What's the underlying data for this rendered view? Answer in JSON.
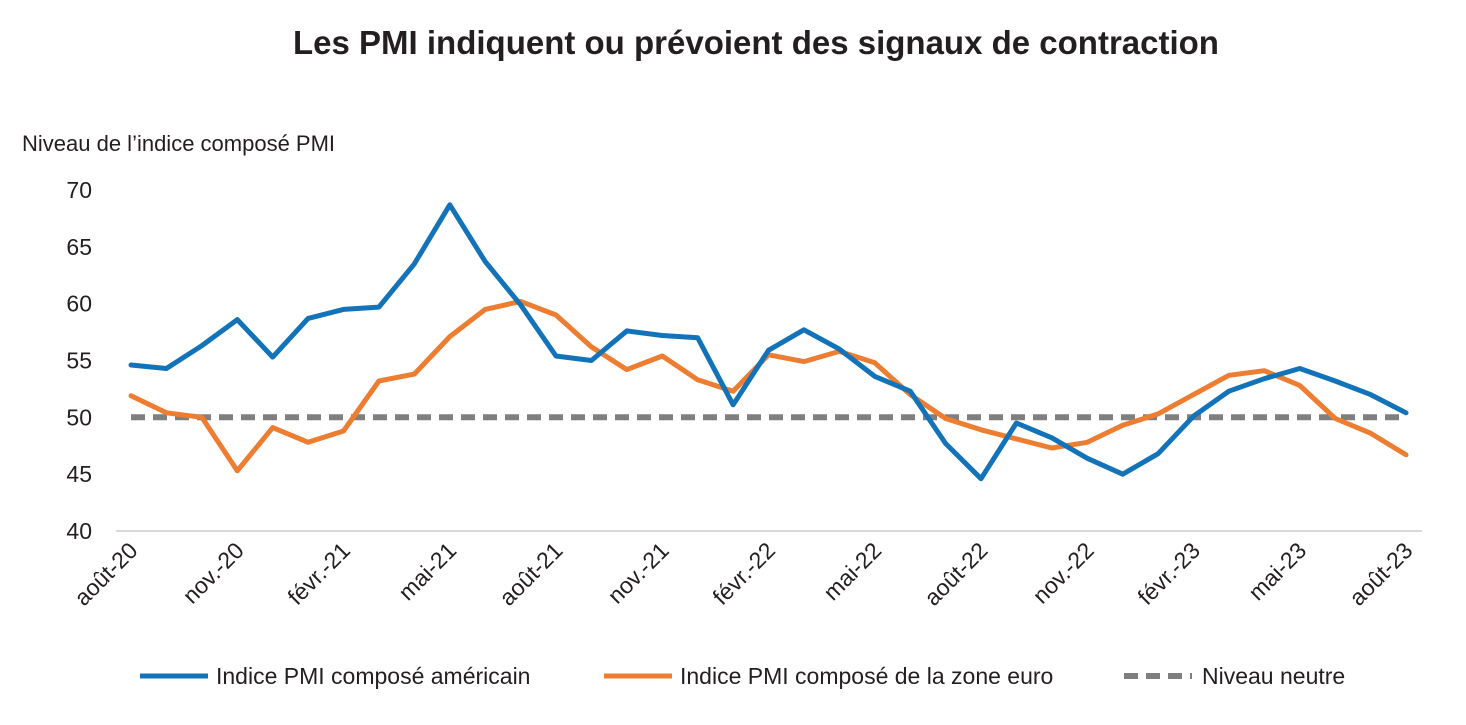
{
  "chart_data": {
    "type": "line",
    "title": "Les  PMI indiquent ou prévoient des signaux de contraction",
    "xlabel": "",
    "ylabel": "Niveau de l’indice composé PMI",
    "ylim": [
      40,
      70
    ],
    "yticks": [
      40,
      45,
      50,
      55,
      60,
      65,
      70
    ],
    "x": [
      "août-20",
      "sept.-20",
      "oct.-20",
      "nov.-20",
      "déc.-20",
      "janv.-21",
      "févr.-21",
      "mars-21",
      "avr.-21",
      "mai-21",
      "juin-21",
      "juil.-21",
      "août-21",
      "sept.-21",
      "oct.-21",
      "nov.-21",
      "déc.-21",
      "janv.-22",
      "févr.-22",
      "mars-22",
      "avr.-22",
      "mai-22",
      "juin-22",
      "juil.-22",
      "août-22",
      "sept.-22",
      "oct.-22",
      "nov.-22",
      "déc.-22",
      "janv.-23",
      "févr.-23",
      "mars-23",
      "avr.-23",
      "mai-23",
      "juin-23",
      "juil.-23",
      "août-23"
    ],
    "xtick_labels": [
      "août-20",
      "nov.-20",
      "févr.-21",
      "mai-21",
      "août-21",
      "nov.-21",
      "févr.-22",
      "mai-22",
      "août-22",
      "nov.-22",
      "févr.-23",
      "mai-23",
      "août-23"
    ],
    "grid": false,
    "legend_position": "bottom",
    "series": [
      {
        "name": "Indice PMI composé américain",
        "color": "#1273b8",
        "style": "solid",
        "values": [
          54.6,
          54.3,
          56.3,
          58.6,
          55.3,
          58.7,
          59.5,
          59.7,
          63.5,
          68.7,
          63.7,
          59.9,
          55.4,
          55.0,
          57.6,
          57.2,
          57.0,
          51.1,
          55.9,
          57.7,
          56.0,
          53.6,
          52.3,
          47.7,
          44.6,
          49.5,
          48.2,
          46.4,
          45.0,
          46.8,
          50.1,
          52.3,
          53.4,
          54.3,
          53.2,
          52.0,
          50.4
        ]
      },
      {
        "name": "Indice PMI composé de la zone euro",
        "color": "#ed7d31",
        "style": "solid",
        "values": [
          51.9,
          50.4,
          50.0,
          45.3,
          49.1,
          47.8,
          48.8,
          53.2,
          53.8,
          57.1,
          59.5,
          60.2,
          59.0,
          56.2,
          54.2,
          55.4,
          53.3,
          52.3,
          55.5,
          54.9,
          55.8,
          54.8,
          52.0,
          49.9,
          48.9,
          48.1,
          47.3,
          47.8,
          49.3,
          50.3,
          52.0,
          53.7,
          54.1,
          52.8,
          49.9,
          48.6,
          46.7
        ]
      },
      {
        "name": "Niveau neutre",
        "color": "#7f7f7f",
        "style": "dashed",
        "values": [
          50,
          50,
          50,
          50,
          50,
          50,
          50,
          50,
          50,
          50,
          50,
          50,
          50,
          50,
          50,
          50,
          50,
          50,
          50,
          50,
          50,
          50,
          50,
          50,
          50,
          50,
          50,
          50,
          50,
          50,
          50,
          50,
          50,
          50,
          50,
          50,
          50
        ]
      }
    ]
  }
}
